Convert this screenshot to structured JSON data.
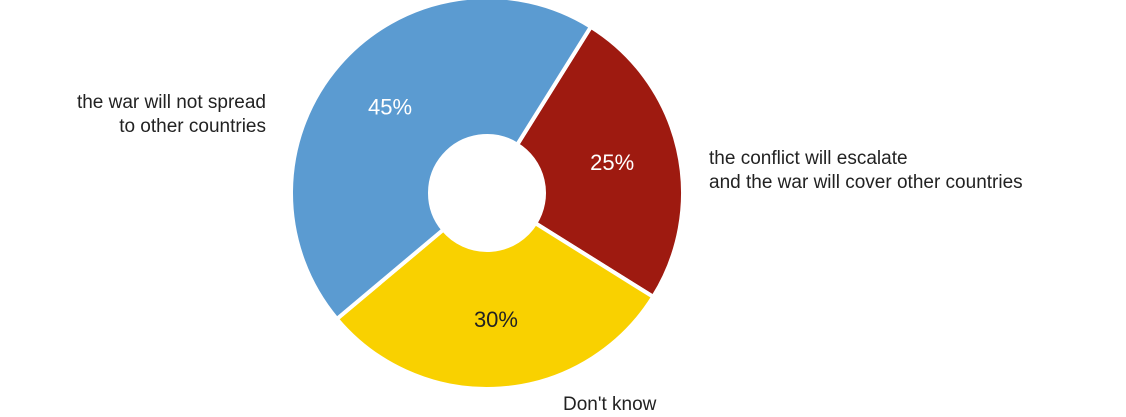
{
  "chart_data": {
    "type": "pie",
    "donut": true,
    "categories": [
      "the conflict will escalate and the war will cover other countries",
      "Don't know",
      "the war will not spread to other countries"
    ],
    "values": [
      25,
      30,
      45
    ],
    "value_labels": [
      "25%",
      "30%",
      "45%"
    ],
    "label_lines": [
      [
        "the conflict will escalate",
        "and the war will cover other countries"
      ],
      [
        "Don't know"
      ],
      [
        "the war will not spread",
        "to other countries"
      ]
    ],
    "colors": [
      "#9e1a10",
      "#f9d100",
      "#5b9bd1"
    ],
    "value_label_colors": [
      "#ffffff",
      "#222222",
      "#ffffff"
    ],
    "legend": "none",
    "grid": false
  }
}
